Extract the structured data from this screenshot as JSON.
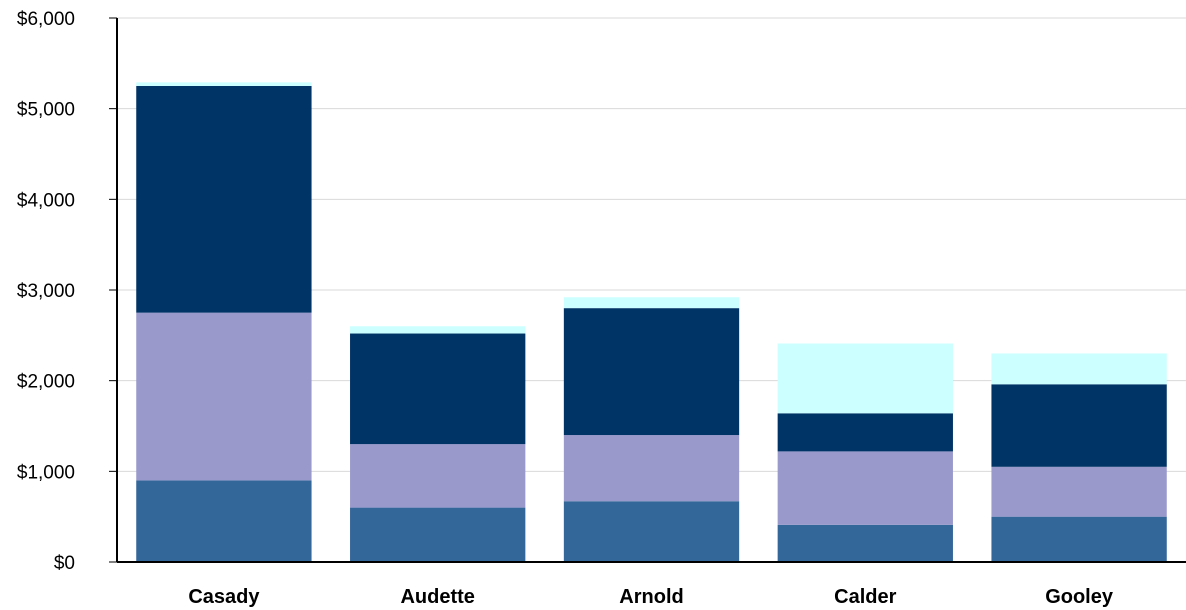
{
  "chart_data": {
    "type": "bar",
    "stacked": true,
    "title": "",
    "xlabel": "",
    "ylabel": "",
    "categories": [
      "Casady",
      "Audette",
      "Arnold",
      "Calder",
      "Gooley"
    ],
    "ylim": [
      0,
      6000
    ],
    "yticks": [
      0,
      1000,
      2000,
      3000,
      4000,
      5000,
      6000
    ],
    "ytick_labels": [
      "$0",
      "$1,000",
      "$2,000",
      "$3,000",
      "$4,000",
      "$5,000",
      "$6,000"
    ],
    "grid": true,
    "legend": "none",
    "series": [
      {
        "color": "#336699",
        "values": [
          900,
          600,
          670,
          410,
          500
        ]
      },
      {
        "color": "#9999cc",
        "values": [
          1850,
          700,
          730,
          810,
          550
        ]
      },
      {
        "color": "#003366",
        "values": [
          2500,
          1220,
          1400,
          420,
          910
        ]
      },
      {
        "color": "#ccffff",
        "values": [
          40,
          80,
          120,
          770,
          340
        ]
      }
    ]
  }
}
